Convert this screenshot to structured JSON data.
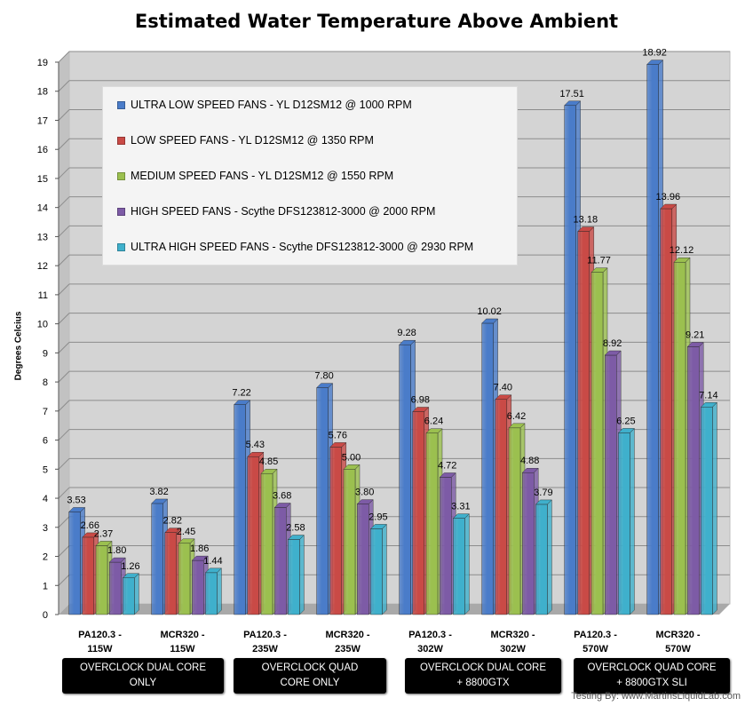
{
  "credit": "Testing By: www.MartinsLiquidLab.com",
  "chart_data": {
    "type": "bar",
    "title": "Estimated Water Temperature Above Ambient",
    "xlabel": "",
    "ylabel": "Degrees Celcius",
    "ylim": [
      0,
      19
    ],
    "yticks": [
      0,
      1,
      2,
      3,
      4,
      5,
      6,
      7,
      8,
      9,
      10,
      11,
      12,
      13,
      14,
      15,
      16,
      17,
      18,
      19
    ],
    "grid": true,
    "legend_position": "top-left",
    "categories": [
      "PA120.3 - 115W",
      "MCR320 - 115W",
      "PA120.3 - 235W",
      "MCR320 - 235W",
      "PA120.3 - 302W",
      "MCR320 - 302W",
      "PA120.3 - 570W",
      "MCR320 - 570W"
    ],
    "category_labels": [
      [
        "PA120.3 -",
        "115W"
      ],
      [
        "MCR320 -",
        "115W"
      ],
      [
        "PA120.3 -",
        "235W"
      ],
      [
        "MCR320 -",
        "235W"
      ],
      [
        "PA120.3 -",
        "302W"
      ],
      [
        "MCR320 -",
        "302W"
      ],
      [
        "PA120.3 -",
        "570W"
      ],
      [
        "MCR320 -",
        "570W"
      ]
    ],
    "groups": [
      [
        "OVERCLOCK DUAL CORE",
        "ONLY"
      ],
      [
        "OVERCLOCK QUAD",
        "CORE ONLY"
      ],
      [
        "OVERCLOCK DUAL CORE",
        "+ 8800GTX"
      ],
      [
        "OVERCLOCK QUAD CORE",
        "+ 8800GTX SLI"
      ]
    ],
    "series": [
      {
        "name": "ULTRA LOW SPEED FANS - YL D12SM12 @ 1000 RPM",
        "color": "#4a7cc9",
        "values": [
          3.53,
          3.82,
          7.22,
          7.8,
          9.28,
          10.02,
          17.51,
          18.92
        ],
        "labels": [
          "3.53",
          "3.82",
          "7.22",
          "7.80",
          "9.28",
          "10.02",
          "17.51",
          "18.92"
        ]
      },
      {
        "name": "LOW SPEED FANS - YL D12SM12 @ 1350 RPM",
        "color": "#c94a46",
        "values": [
          2.66,
          2.82,
          5.43,
          5.76,
          6.98,
          7.4,
          13.18,
          13.96
        ],
        "labels": [
          "2.66",
          "2.82",
          "5.43",
          "5.76",
          "6.98",
          "7.40",
          "13.18",
          "13.96"
        ]
      },
      {
        "name": "MEDIUM SPEED FANS - YL D12SM12 @ 1550 RPM",
        "color": "#9bc04f",
        "values": [
          2.37,
          2.45,
          4.85,
          5.0,
          6.24,
          6.42,
          11.77,
          12.12
        ],
        "labels": [
          "2.37",
          "2.45",
          "4.85",
          "5.00",
          "6.24",
          "6.42",
          "11.77",
          "12.12"
        ]
      },
      {
        "name": "HIGH SPEED FANS - Scythe  DFS123812-3000 @ 2000 RPM",
        "color": "#7d5ba6",
        "values": [
          1.8,
          1.86,
          3.68,
          3.8,
          4.72,
          4.88,
          8.92,
          9.21
        ],
        "labels": [
          "1.80",
          "1.86",
          "3.68",
          "3.80",
          "4.72",
          "4.88",
          "8.92",
          "9.21"
        ]
      },
      {
        "name": "ULTRA HIGH SPEED FANS - Scythe  DFS123812-3000 @ 2930 RPM",
        "color": "#3fb0cc",
        "values": [
          1.26,
          1.44,
          2.58,
          2.95,
          3.31,
          3.79,
          6.25,
          7.14
        ],
        "labels": [
          "1.26",
          "1.44",
          "2.58",
          "2.95",
          "3.31",
          "3.79",
          "6.25",
          "7.14"
        ]
      }
    ]
  }
}
